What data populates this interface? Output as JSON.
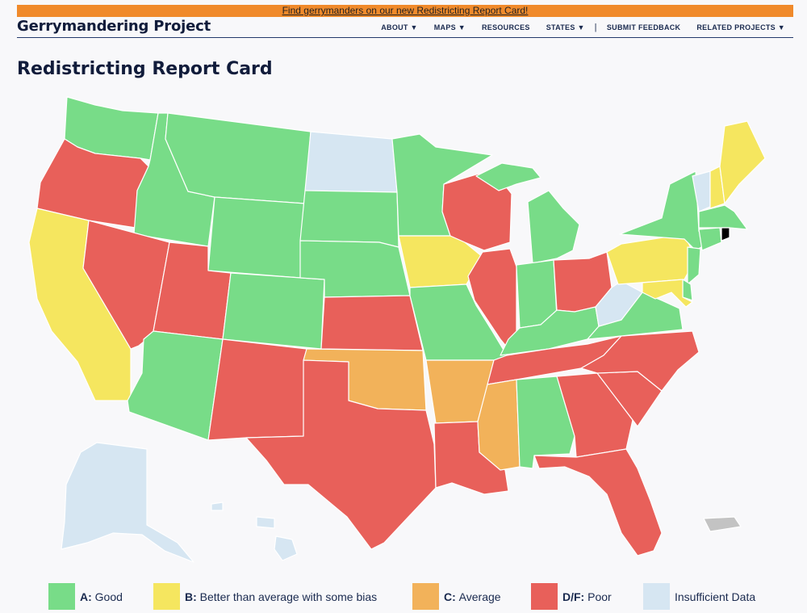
{
  "banner": {
    "text": "Find gerrymanders on our new Redistricting Report Card!"
  },
  "site": {
    "title": "Gerrymandering Project"
  },
  "nav": [
    {
      "label": "ABOUT ▼"
    },
    {
      "label": "MAPS ▼"
    },
    {
      "label": "RESOURCES"
    },
    {
      "label": "STATES ▼"
    },
    {
      "label": "SUBMIT FEEDBACK"
    },
    {
      "label": "RELATED PROJECTS ▼"
    }
  ],
  "page": {
    "title": "Redistricting Report Card"
  },
  "colors": {
    "good": "#78dc88",
    "bias": "#f5e65f",
    "average": "#f2b25a",
    "poor": "#e8605a",
    "insufficient": "#d6e6f2",
    "territory": "#c3c3c3"
  },
  "legend": [
    {
      "grade": "A:",
      "text": "Good",
      "color": "#78dc88"
    },
    {
      "grade": "B:",
      "text": "Better than average with some bias",
      "color": "#f5e65f"
    },
    {
      "grade": "C:",
      "text": "Average",
      "color": "#f2b25a"
    },
    {
      "grade": "D/F:",
      "text": "Poor",
      "color": "#e8605a"
    },
    {
      "grade": "",
      "text": "Insufficient Data",
      "color": "#d6e6f2"
    }
  ],
  "states": {
    "WA": "good",
    "OR": "poor",
    "CA": "bias",
    "ID": "good",
    "NV": "poor",
    "MT": "good",
    "WY": "good",
    "UT": "poor",
    "AZ": "good",
    "CO": "good",
    "NM": "poor",
    "ND": "insufficient",
    "SD": "good",
    "NE": "good",
    "KS": "poor",
    "OK": "average",
    "TX": "poor",
    "MN": "good",
    "IA": "bias",
    "MO": "good",
    "AR": "average",
    "LA": "poor",
    "WI": "poor",
    "IL": "poor",
    "MS": "average",
    "MI": "good",
    "IN": "good",
    "KY": "good",
    "TN": "poor",
    "AL": "good",
    "OH": "poor",
    "GA": "poor",
    "FL": "poor",
    "SC": "poor",
    "NC": "poor",
    "VA": "good",
    "WV": "insufficient",
    "PA": "bias",
    "NY": "good",
    "VT": "insufficient",
    "NH": "bias",
    "ME": "bias",
    "MA": "good",
    "CT": "good",
    "NJ": "good",
    "DE": "good",
    "MD": "bias",
    "AK": "insufficient",
    "HI": "insufficient",
    "PR": "territory"
  }
}
